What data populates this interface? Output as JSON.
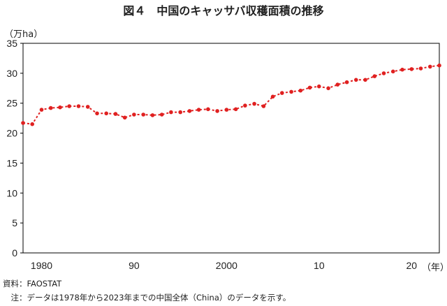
{
  "title": "図４　中国のキャッサバ収穫面積の推移",
  "notes": {
    "source": "資料：FAOSTAT",
    "note": "　注：データは1978年から2023年までの中国全体（China）のデータを示す。"
  },
  "chart_data": {
    "type": "line",
    "title": "図４　中国のキャッサバ収穫面積の推移",
    "ylabel": "（万ha）",
    "xlabel": "（年）",
    "ylim": [
      0,
      35
    ],
    "yticks": [
      0,
      5,
      10,
      15,
      20,
      25,
      30,
      35
    ],
    "xlim": [
      1978,
      2023
    ],
    "xticks": [
      {
        "year": 1980,
        "label": "1980"
      },
      {
        "year": 1990,
        "label": "90"
      },
      {
        "year": 2000,
        "label": "2000"
      },
      {
        "year": 2010,
        "label": "10"
      },
      {
        "year": 2020,
        "label": "20"
      }
    ],
    "grid": false,
    "series": [
      {
        "color": "#e02020",
        "x": [
          1978,
          1979,
          1980,
          1981,
          1982,
          1983,
          1984,
          1985,
          1986,
          1987,
          1988,
          1989,
          1990,
          1991,
          1992,
          1993,
          1994,
          1995,
          1996,
          1997,
          1998,
          1999,
          2000,
          2001,
          2002,
          2003,
          2004,
          2005,
          2006,
          2007,
          2008,
          2009,
          2010,
          2011,
          2012,
          2013,
          2014,
          2015,
          2016,
          2017,
          2018,
          2019,
          2020,
          2021,
          2022,
          2023
        ],
        "values": [
          21.7,
          21.5,
          23.9,
          24.2,
          24.3,
          24.5,
          24.5,
          24.4,
          23.3,
          23.3,
          23.2,
          22.6,
          23.1,
          23.1,
          23.0,
          23.1,
          23.5,
          23.5,
          23.7,
          23.9,
          24.0,
          23.7,
          23.9,
          24.0,
          24.6,
          24.9,
          24.5,
          26.1,
          26.7,
          26.9,
          27.1,
          27.6,
          27.8,
          27.5,
          28.1,
          28.5,
          28.9,
          28.9,
          29.5,
          30.0,
          30.3,
          30.6,
          30.7,
          30.8,
          31.1,
          31.3
        ]
      }
    ]
  }
}
